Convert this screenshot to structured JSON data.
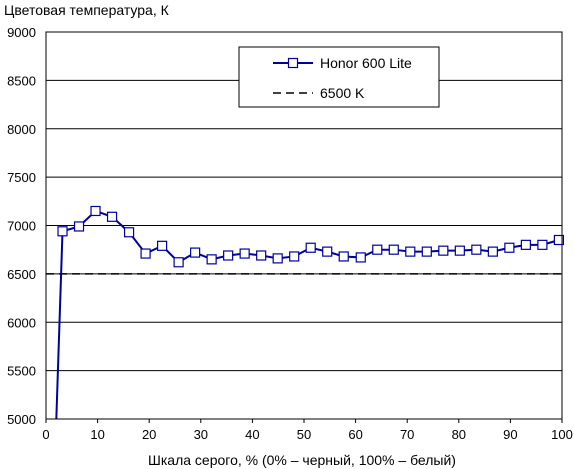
{
  "chart_data": {
    "type": "line",
    "title": "",
    "ylabel": "Цветовая температура, К",
    "xlabel": "Шкала серого, % (0% – черный, 100% – белый)",
    "xlim": [
      0,
      100
    ],
    "ylim": [
      5000,
      9000
    ],
    "x_ticks": [
      0,
      10,
      20,
      30,
      40,
      50,
      60,
      70,
      80,
      90,
      100
    ],
    "y_ticks": [
      5000,
      5500,
      6000,
      6500,
      7000,
      7500,
      8000,
      8500,
      9000
    ],
    "grid": "horizontal",
    "legend_position": "top-right",
    "series": [
      {
        "name": "Honor 600 Lite",
        "color": "#0000a0",
        "marker": "square",
        "points": [
          [
            2,
            5000
          ],
          [
            3.2,
            6940
          ],
          [
            6.4,
            6990
          ],
          [
            9.6,
            7150
          ],
          [
            12.8,
            7090
          ],
          [
            16.1,
            6930
          ],
          [
            19.3,
            6710
          ],
          [
            22.5,
            6790
          ],
          [
            25.7,
            6620
          ],
          [
            28.9,
            6720
          ],
          [
            32.1,
            6650
          ],
          [
            35.3,
            6690
          ],
          [
            38.5,
            6710
          ],
          [
            41.7,
            6690
          ],
          [
            44.9,
            6660
          ],
          [
            48.1,
            6680
          ],
          [
            51.3,
            6770
          ],
          [
            54.5,
            6730
          ],
          [
            57.7,
            6680
          ],
          [
            61,
            6670
          ],
          [
            64.2,
            6750
          ],
          [
            67.4,
            6750
          ],
          [
            70.6,
            6730
          ],
          [
            73.8,
            6730
          ],
          [
            77,
            6740
          ],
          [
            80.2,
            6740
          ],
          [
            83.4,
            6750
          ],
          [
            86.6,
            6730
          ],
          [
            89.8,
            6770
          ],
          [
            93,
            6800
          ],
          [
            96.2,
            6800
          ],
          [
            99.4,
            6850
          ]
        ]
      },
      {
        "name": "6500 K",
        "color": "#000000",
        "style": "dashed",
        "points": [
          [
            0,
            6500
          ],
          [
            100,
            6500
          ]
        ]
      }
    ]
  }
}
